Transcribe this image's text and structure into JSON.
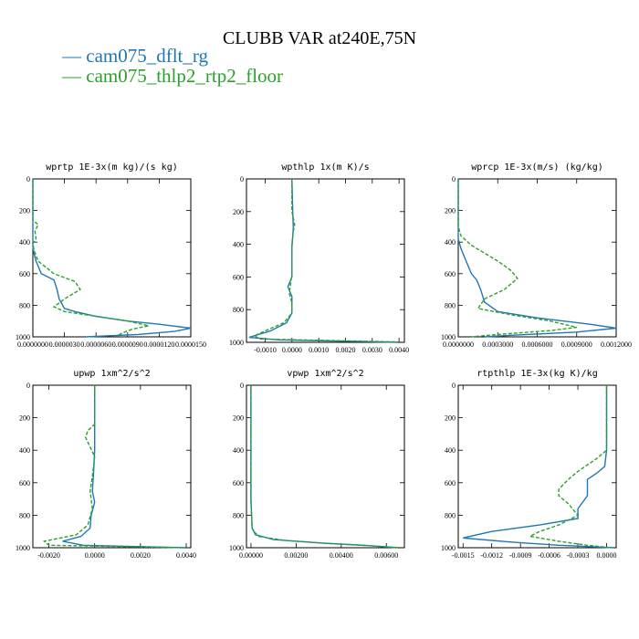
{
  "figure": {
    "title": "CLUBB VAR at240E,75N",
    "legend": [
      {
        "label": "cam075_dflt_rg",
        "color": "#1f77b4"
      },
      {
        "label": "cam075_thlp2_rtp2_floor",
        "color": "#2ca02c"
      }
    ]
  },
  "chart_data": [
    {
      "type": "line",
      "title": "wprtp  1E-3x(m kg)/(s kg)",
      "xlim": [
        0.0,
        1.5e-05
      ],
      "ylim": [
        1000,
        0
      ],
      "xticks": [
        0.0,
        3e-06,
        6e-06,
        9e-06,
        1.2e-05,
        1.5e-05
      ],
      "xtick_labels": [
        "0.0000000",
        "0.0000030",
        "0.0000060",
        "0.0000090",
        "0.0000120",
        "0.0000150"
      ],
      "yticks": [
        0,
        200,
        400,
        600,
        800,
        1000
      ],
      "ytick_labels": [
        "0",
        "200",
        "400",
        "600",
        "800",
        "1000"
      ],
      "series": [
        {
          "name": "cam075_dflt_rg",
          "color": "#1f77b4",
          "dash": false,
          "points": [
            [
              0,
              0
            ],
            [
              0,
              200
            ],
            [
              0,
              400
            ],
            [
              0,
              430
            ],
            [
              1e-07,
              470
            ],
            [
              3e-07,
              520
            ],
            [
              8e-07,
              600
            ],
            [
              2e-06,
              640
            ],
            [
              2.3e-06,
              700
            ],
            [
              2.5e-06,
              760
            ],
            [
              3e-06,
              820
            ],
            [
              4e-06,
              840
            ],
            [
              6e-06,
              870
            ],
            [
              9e-06,
              900
            ],
            [
              1.2e-05,
              920
            ],
            [
              1.5e-05,
              945
            ],
            [
              1.35e-05,
              965
            ],
            [
              1e-05,
              985
            ],
            [
              5e-06,
              1000
            ]
          ]
        },
        {
          "name": "cam075_thlp2_rtp2_floor",
          "color": "#2ca02c",
          "dash": true,
          "points": [
            [
              0,
              0
            ],
            [
              0,
              260
            ],
            [
              5e-07,
              290
            ],
            [
              2e-07,
              330
            ],
            [
              3e-07,
              380
            ],
            [
              0,
              410
            ],
            [
              1e-07,
              450
            ],
            [
              5e-07,
              520
            ],
            [
              2e-06,
              600
            ],
            [
              4e-06,
              650
            ],
            [
              4.5e-06,
              700
            ],
            [
              3e-06,
              760
            ],
            [
              2e-06,
              810
            ],
            [
              3e-06,
              840
            ],
            [
              6e-06,
              870
            ],
            [
              9e-06,
              900
            ],
            [
              1.1e-05,
              930
            ],
            [
              9.5e-06,
              950
            ],
            [
              8.5e-06,
              975
            ],
            [
              8e-06,
              995
            ]
          ]
        }
      ]
    },
    {
      "type": "line",
      "title": "wpthlp  1x(m K)/s",
      "xlim": [
        -0.0017,
        0.0042
      ],
      "ylim": [
        1000,
        0
      ],
      "xticks": [
        -0.001,
        0.0,
        0.001,
        0.002,
        0.003,
        0.004
      ],
      "xtick_labels": [
        "-0.0010",
        "0.0000",
        "0.0010",
        "0.0020",
        "0.0030",
        "0.0040"
      ],
      "yticks": [
        0,
        200,
        400,
        600,
        800,
        1000
      ],
      "ytick_labels": [
        "0",
        "200",
        "400",
        "600",
        "800",
        "1000"
      ],
      "series": [
        {
          "name": "cam075_dflt_rg",
          "color": "#1f77b4",
          "dash": false,
          "points": [
            [
              0,
              0
            ],
            [
              3e-05,
              200
            ],
            [
              5e-05,
              300
            ],
            [
              0,
              420
            ],
            [
              0,
              600
            ],
            [
              -0.00015,
              660
            ],
            [
              0,
              720
            ],
            [
              0,
              820
            ],
            [
              -0.0002,
              880
            ],
            [
              -0.0008,
              930
            ],
            [
              -0.0016,
              970
            ],
            [
              -0.0005,
              985
            ],
            [
              0.004,
              1000
            ]
          ]
        },
        {
          "name": "cam075_thlp2_rtp2_floor",
          "color": "#2ca02c",
          "dash": true,
          "points": [
            [
              0,
              0
            ],
            [
              0,
              200
            ],
            [
              0.0001,
              280
            ],
            [
              5e-05,
              320
            ],
            [
              0,
              400
            ],
            [
              0,
              580
            ],
            [
              -5e-05,
              640
            ],
            [
              -0.0001,
              700
            ],
            [
              0,
              760
            ],
            [
              0,
              820
            ],
            [
              -0.0003,
              880
            ],
            [
              -0.001,
              930
            ],
            [
              -0.0014,
              960
            ],
            [
              -0.0012,
              980
            ],
            [
              0.004,
              998
            ]
          ]
        }
      ]
    },
    {
      "type": "line",
      "title": "wprcp  1E-3x(m/s) (kg/kg)",
      "xlim": [
        0.0,
        0.0012
      ],
      "ylim": [
        1000,
        0
      ],
      "xticks": [
        0.0,
        0.0003,
        0.0006,
        0.0009,
        0.0012
      ],
      "xtick_labels": [
        "0.0000000",
        "0.0003000",
        "0.0006000",
        "0.0009000",
        "0.0012000"
      ],
      "yticks": [
        0,
        200,
        400,
        600,
        800,
        1000
      ],
      "ytick_labels": [
        "0",
        "200",
        "400",
        "600",
        "800",
        "1000"
      ],
      "series": [
        {
          "name": "cam075_dflt_rg",
          "color": "#1f77b4",
          "dash": false,
          "points": [
            [
              0,
              0
            ],
            [
              0,
              380
            ],
            [
              2e-05,
              440
            ],
            [
              6e-05,
              520
            ],
            [
              0.0001,
              600
            ],
            [
              0.00014,
              640
            ],
            [
              0.00017,
              700
            ],
            [
              0.0002,
              780
            ],
            [
              0.0003,
              840
            ],
            [
              0.0006,
              880
            ],
            [
              0.001,
              920
            ],
            [
              0.0012,
              945
            ],
            [
              0.0009,
              970
            ],
            [
              0.0004,
              990
            ],
            [
              0.0002,
              1000
            ]
          ]
        },
        {
          "name": "cam075_thlp2_rtp2_floor",
          "color": "#2ca02c",
          "dash": true,
          "points": [
            [
              0,
              0
            ],
            [
              0,
              300
            ],
            [
              2e-05,
              360
            ],
            [
              0.0001,
              420
            ],
            [
              0.0003,
              520
            ],
            [
              0.0004,
              580
            ],
            [
              0.00045,
              630
            ],
            [
              0.00035,
              700
            ],
            [
              0.0002,
              760
            ],
            [
              0.00015,
              820
            ],
            [
              0.0004,
              860
            ],
            [
              0.0007,
              900
            ],
            [
              0.0009,
              940
            ],
            [
              0.0007,
              960
            ],
            [
              0.0003,
              985
            ],
            [
              0.0001,
              1000
            ]
          ]
        }
      ]
    },
    {
      "type": "line",
      "title": "upwp  1xm^2/s^2",
      "xlim": [
        -0.0027,
        0.0042
      ],
      "ylim": [
        1000,
        0
      ],
      "xticks": [
        -0.002,
        0.0,
        0.002,
        0.004
      ],
      "xtick_labels": [
        "-0.0020",
        "0.0000",
        "0.0020",
        "0.0040"
      ],
      "yticks": [
        0,
        200,
        400,
        600,
        800,
        1000
      ],
      "ytick_labels": [
        "0",
        "200",
        "400",
        "600",
        "800",
        "1000"
      ],
      "series": [
        {
          "name": "cam075_dflt_rg",
          "color": "#1f77b4",
          "dash": false,
          "points": [
            [
              0,
              0
            ],
            [
              0,
              400
            ],
            [
              -5e-05,
              550
            ],
            [
              -0.0001,
              650
            ],
            [
              0,
              720
            ],
            [
              -0.00015,
              800
            ],
            [
              -0.0002,
              880
            ],
            [
              -0.0006,
              930
            ],
            [
              -0.0014,
              960
            ],
            [
              -0.0005,
              985
            ],
            [
              0.004,
              1000
            ]
          ]
        },
        {
          "name": "cam075_thlp2_rtp2_floor",
          "color": "#2ca02c",
          "dash": true,
          "points": [
            [
              0,
              0
            ],
            [
              0,
              240
            ],
            [
              -0.0003,
              280
            ],
            [
              -0.0004,
              320
            ],
            [
              -0.0002,
              380
            ],
            [
              0,
              440
            ],
            [
              -0.0001,
              560
            ],
            [
              -0.0002,
              650
            ],
            [
              -0.0001,
              760
            ],
            [
              -0.0003,
              860
            ],
            [
              -0.0008,
              920
            ],
            [
              -0.0022,
              960
            ],
            [
              -0.002,
              985
            ],
            [
              0.004,
              1000
            ]
          ]
        }
      ]
    },
    {
      "type": "line",
      "title": "vpwp  1xm^2/s^2",
      "xlim": [
        -0.0002,
        0.0068
      ],
      "ylim": [
        1000,
        0
      ],
      "xticks": [
        0.0,
        0.002,
        0.004,
        0.006
      ],
      "xtick_labels": [
        "0.00000",
        "0.00200",
        "0.00400",
        "0.00600"
      ],
      "yticks": [
        0,
        200,
        400,
        600,
        800,
        1000
      ],
      "ytick_labels": [
        "0",
        "200",
        "400",
        "600",
        "800",
        "1000"
      ],
      "series": [
        {
          "name": "cam075_dflt_rg",
          "color": "#1f77b4",
          "dash": false,
          "points": [
            [
              0,
              0
            ],
            [
              0,
              700
            ],
            [
              5e-05,
              880
            ],
            [
              0.0002,
              920
            ],
            [
              0.001,
              950
            ],
            [
              0.003,
              970
            ],
            [
              0.005,
              985
            ],
            [
              0.0065,
              1000
            ]
          ]
        },
        {
          "name": "cam075_thlp2_rtp2_floor",
          "color": "#2ca02c",
          "dash": true,
          "points": [
            [
              0,
              0
            ],
            [
              0,
              720
            ],
            [
              5e-05,
              880
            ],
            [
              0.0003,
              930
            ],
            [
              0.0015,
              955
            ],
            [
              0.0035,
              975
            ],
            [
              0.0055,
              990
            ],
            [
              0.0066,
              1000
            ]
          ]
        }
      ]
    },
    {
      "type": "line",
      "title": "rtpthlp  1E-3x(kg K)/kg",
      "xlim": [
        -0.00155,
        0.0001
      ],
      "ylim": [
        1000,
        0
      ],
      "xticks": [
        -0.0015,
        -0.0012,
        -0.0009,
        -0.0006,
        -0.0003,
        0.0
      ],
      "xtick_labels": [
        "-0.0015",
        "-0.0012",
        "-0.0009",
        "-0.0006",
        "-0.0003",
        "0.0000"
      ],
      "yticks": [
        0,
        200,
        400,
        600,
        800,
        1000
      ],
      "ytick_labels": [
        "0",
        "200",
        "400",
        "600",
        "800",
        "1000"
      ],
      "series": [
        {
          "name": "cam075_dflt_rg",
          "color": "#1f77b4",
          "dash": false,
          "points": [
            [
              0,
              0
            ],
            [
              0,
              400
            ],
            [
              -2e-05,
              500
            ],
            [
              -0.0001,
              540
            ],
            [
              -0.0002,
              580
            ],
            [
              -0.0002,
              680
            ],
            [
              -0.0003,
              760
            ],
            [
              -0.0003,
              820
            ],
            [
              -0.0007,
              860
            ],
            [
              -0.0012,
              900
            ],
            [
              -0.0015,
              940
            ],
            [
              -0.001,
              965
            ],
            [
              -0.0005,
              985
            ],
            [
              8e-05,
              1000
            ]
          ]
        },
        {
          "name": "cam075_thlp2_rtp2_floor",
          "color": "#2ca02c",
          "dash": true,
          "points": [
            [
              0,
              0
            ],
            [
              0,
              400
            ],
            [
              -0.0001,
              450
            ],
            [
              -0.0003,
              530
            ],
            [
              -0.0004,
              580
            ],
            [
              -0.0005,
              640
            ],
            [
              -0.0005,
              680
            ],
            [
              -0.0004,
              730
            ],
            [
              -0.0003,
              800
            ],
            [
              -0.0005,
              860
            ],
            [
              -0.0007,
              900
            ],
            [
              -0.0008,
              930
            ],
            [
              -0.0005,
              960
            ],
            [
              -0.0002,
              985
            ],
            [
              5e-05,
              1000
            ]
          ]
        }
      ]
    }
  ]
}
